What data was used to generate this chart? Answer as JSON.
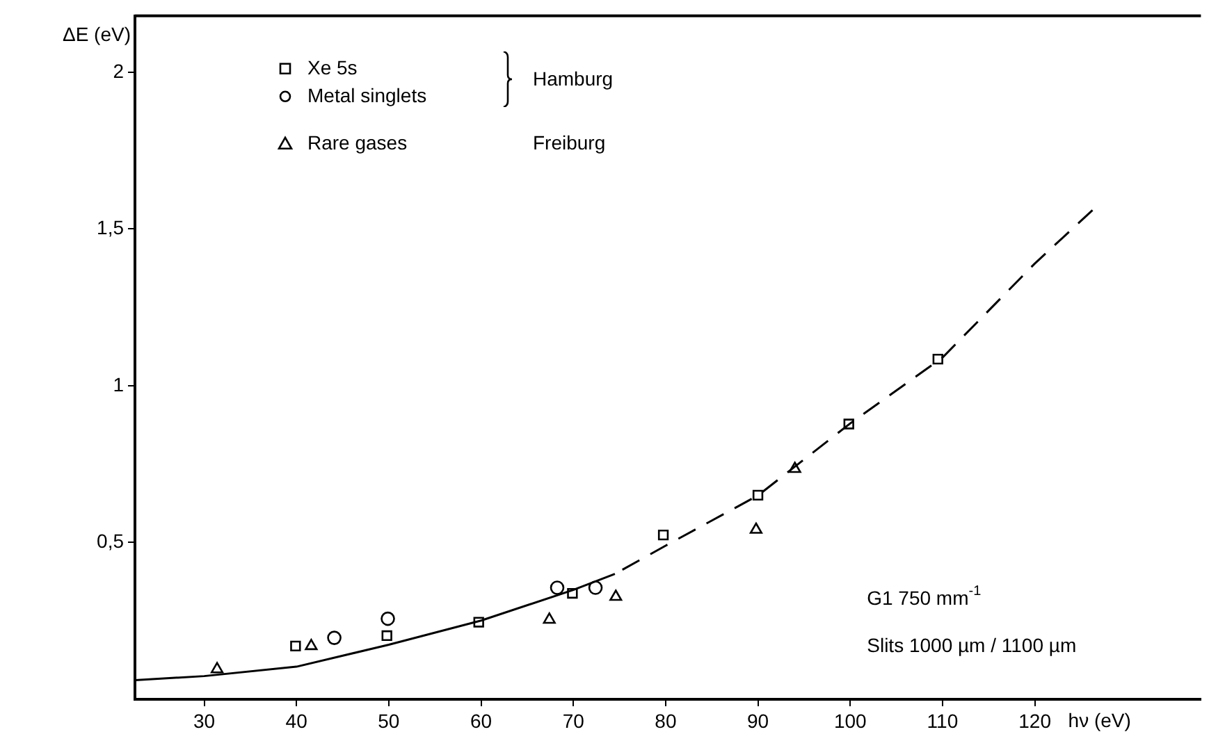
{
  "chart_data": {
    "type": "scatter",
    "xlabel": "hν (eV)",
    "ylabel": "ΔE (eV)",
    "xlim": [
      22.5,
      138
    ],
    "xticks": [
      30,
      40,
      50,
      60,
      70,
      80,
      90,
      100,
      110,
      120
    ],
    "ylim": [
      0,
      2.18
    ],
    "yticks": [
      {
        "value": 0.5,
        "label": "0,5"
      },
      {
        "value": 1,
        "label": "1"
      },
      {
        "value": 1.5,
        "label": "1,5"
      },
      {
        "value": 2,
        "label": "2"
      }
    ],
    "grid": false,
    "legend": "top left",
    "series": [
      {
        "name": "Xe 5s",
        "type": "scatter",
        "marker": "square",
        "color": "#000000",
        "x": [
          39.9,
          49.8,
          59.75,
          69.9,
          79.75,
          90,
          99.85,
          109.5
        ],
        "values": [
          0.17,
          0.203,
          0.246,
          0.338,
          0.524,
          0.651,
          0.878,
          1.085
        ]
      },
      {
        "name": "Metal singlets",
        "type": "scatter",
        "marker": "circle",
        "color": "#000000",
        "x": [
          44.1,
          49.9,
          68.25,
          72.4
        ],
        "values": [
          0.196,
          0.257,
          0.356,
          0.356
        ]
      },
      {
        "name": "Rare gases",
        "type": "scatter",
        "marker": "triangle",
        "color": "#000000",
        "x": [
          31.4,
          41.6,
          67.4,
          74.6,
          89.8,
          94
        ],
        "values": [
          0.096,
          0.17,
          0.254,
          0.327,
          0.541,
          0.735
        ]
      },
      {
        "type": "line",
        "marker": "none",
        "line_style": "solid",
        "color": "#000000",
        "x": [
          22.5,
          30,
          40,
          50,
          60,
          70,
          74.5
        ],
        "values": [
          0.061,
          0.074,
          0.104,
          0.174,
          0.251,
          0.349,
          0.4
        ]
      },
      {
        "type": "line",
        "marker": "none",
        "line_style": "dashed",
        "color": "#000000",
        "x": [
          126.25,
          120,
          110,
          100,
          90,
          80,
          74.5
        ],
        "values": [
          1.56,
          1.39,
          1.09,
          0.88,
          0.65,
          0.49,
          0.4
        ]
      }
    ],
    "annotations": [
      "Hamburg",
      "Freiburg",
      "G1 750 mm$^{-1}$",
      "Slits 1000 µm / 1100 µm"
    ]
  }
}
